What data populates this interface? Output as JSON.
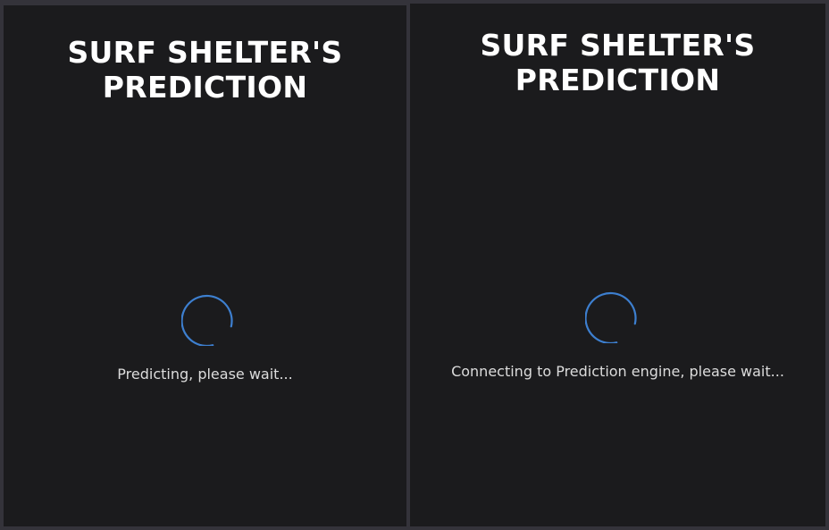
{
  "panels": [
    {
      "title_line1": "SURF SHELTER'S",
      "title_line2": "PREDICTION",
      "status": "Predicting, please wait..."
    },
    {
      "title_line1": "SURF SHELTER'S",
      "title_line2": "PREDICTION",
      "status": "Connecting to Prediction engine, please wait..."
    }
  ],
  "colors": {
    "background": "#34333a",
    "panel": "#1b1b1d",
    "spinner": "#3d7fcf",
    "title": "#ffffff",
    "status": "#dcdcdc"
  },
  "icons": {
    "spinner": "loading-spinner-icon"
  }
}
